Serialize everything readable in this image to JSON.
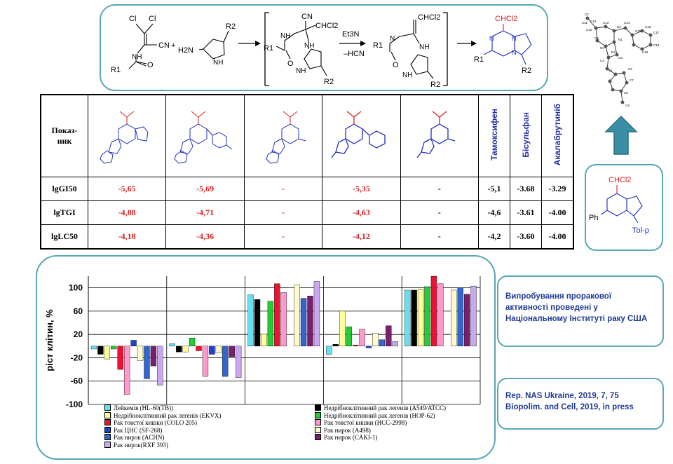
{
  "scheme": {
    "reagents": [
      "Et3N",
      "–HCN"
    ],
    "labels": {
      "cl": "Cl",
      "cn": "CN",
      "nh": "NH",
      "chcl2": "CHCl2",
      "r1": "R1",
      "r2": "R2",
      "h2n": "H2N",
      "n": "N",
      "o": "O",
      "plus": "+"
    }
  },
  "table": {
    "indicator_header": "Показ-\nник",
    "drugs": [
      "Тамоксифен",
      "Бісульфан",
      "Акалабрутиніб"
    ],
    "rows": [
      {
        "label": "lgGI50",
        "values": [
          "-5,65",
          "-5,69",
          "-",
          "-5,35",
          "-",
          "-5,1",
          "-3.68",
          "-3.29"
        ]
      },
      {
        "label": "lgTGI",
        "values": [
          "-4,88",
          "-4,71",
          "-",
          "-4,63",
          "-",
          "-4,6",
          "-3.61",
          "-4.00"
        ]
      },
      {
        "label": "lgLC50",
        "values": [
          "-4,18",
          "-4,36",
          "-",
          "-4,12",
          "-",
          "-4,2",
          "-3.60",
          "-4.00"
        ]
      }
    ],
    "value_colors": [
      "#d61f1f",
      "#d61f1f",
      "#d61f1f",
      "#d61f1f",
      "#000000",
      "#000000",
      "#000000",
      "#000000"
    ]
  },
  "right_structure": {
    "top": "CHCl2",
    "ph": "Ph",
    "tol": "Tol-p"
  },
  "xray_labels": [
    "C2",
    "C10",
    "C11",
    "C12",
    "C13",
    "C14",
    "C15",
    "C16",
    "C17",
    "C18",
    "C19",
    "C4",
    "N4",
    "N3",
    "N1",
    "N2",
    "C3",
    "C5",
    "C1",
    "C6",
    "C7",
    "C8",
    "C9"
  ],
  "info": {
    "text": "Випробування проракової активності проведені у Національному Інституті раку США",
    "refs": [
      "Rep. NAS Ukraine, 2019, 7, 75",
      "Biopolim. and Cell, 2019,  in press"
    ]
  },
  "chart_data": {
    "type": "bar",
    "ylabel": "ріст клітин, %",
    "ylim": [
      -100,
      120
    ],
    "yticks": [
      100,
      60,
      20,
      -20,
      -60,
      -100
    ],
    "grid": true,
    "legend_position": "bottom",
    "groups": 5,
    "series": [
      {
        "name": "Лейкемія (HL-60(TB))",
        "color": "#66e0f0",
        "values": [
          -5,
          4,
          88,
          -14,
          96
        ]
      },
      {
        "name": "Недрібноклітинний рак легенів (A549/ATCC)",
        "color": "#000000",
        "values": [
          -14,
          -10,
          80,
          3,
          96
        ]
      },
      {
        "name": "Недрібноклітинний рак легенів (EKVX)",
        "color": "#ffff99",
        "values": [
          -22,
          -10,
          21,
          60,
          98
        ]
      },
      {
        "name": "Недрібноклітинний рак легенів (HOP-62)",
        "color": "#22cc33",
        "values": [
          -5,
          14,
          77,
          33,
          102
        ]
      },
      {
        "name": "Рак товстої кишки (COLO 205)",
        "color": "#ee1133",
        "values": [
          -40,
          -8,
          107,
          2,
          120
        ]
      },
      {
        "name": "Рак товстої кишки (HCC-2998)",
        "color": "#ff99cc",
        "values": [
          -83,
          -52,
          92,
          29,
          107
        ]
      },
      {
        "name": "Рак ЦНС (SF-268)",
        "color": "#1f3fd0",
        "values": [
          10,
          -14,
          0,
          -3,
          0
        ]
      },
      {
        "name": "Рак нирок (A498)",
        "color": "#fffacd",
        "values": [
          -25,
          -12,
          105,
          22,
          96
        ]
      },
      {
        "name": "Рак нирок (ACHN)",
        "color": "#3366cc",
        "values": [
          -56,
          -52,
          82,
          11,
          100
        ]
      },
      {
        "name": "Рак нирок (CAKI-1)",
        "color": "#7a1f6e",
        "values": [
          -34,
          -18,
          86,
          35,
          89
        ]
      },
      {
        "name": "Рак нирок(RXF 393)",
        "color": "#c9a8f0",
        "values": [
          -67,
          -54,
          111,
          8,
          103
        ]
      }
    ],
    "tick_labels": [
      "100",
      "60",
      "20",
      "-20",
      "-60",
      "-100"
    ]
  }
}
